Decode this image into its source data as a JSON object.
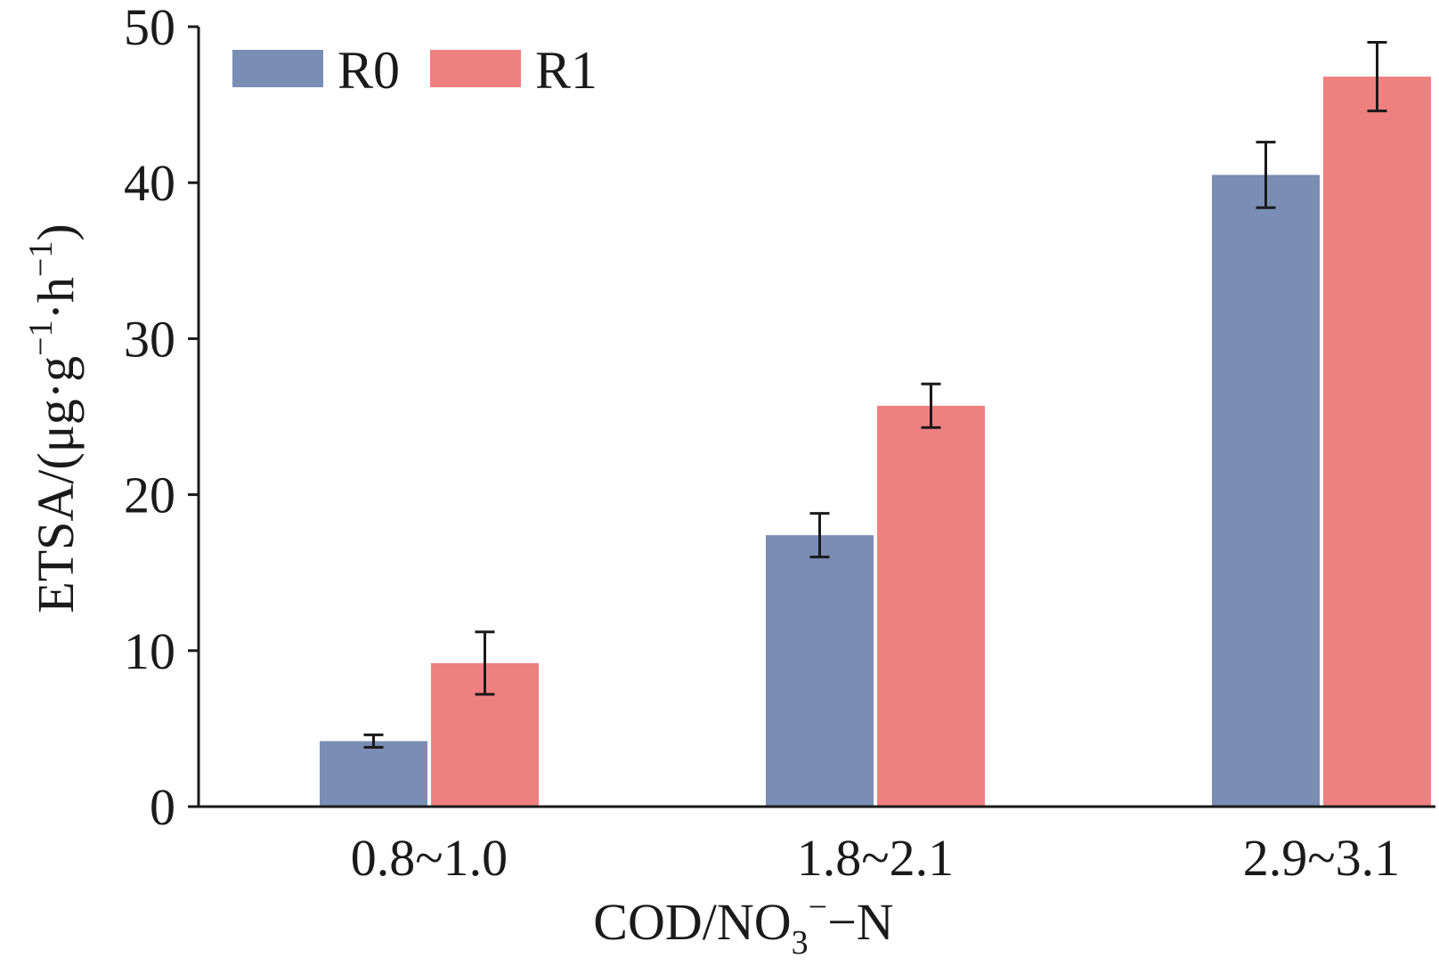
{
  "chart_data": {
    "type": "bar",
    "categories": [
      "0.8~1.0",
      "1.8~2.1",
      "2.9~3.1"
    ],
    "series": [
      {
        "name": "R0",
        "color": "#7a8db4",
        "values": [
          4.2,
          17.4,
          40.5
        ],
        "errors": [
          0.4,
          1.4,
          2.1
        ]
      },
      {
        "name": "R1",
        "color": "#ef8080",
        "values": [
          9.2,
          25.7,
          46.8
        ],
        "errors": [
          2.0,
          1.4,
          2.2
        ]
      }
    ],
    "ylim": [
      0,
      50
    ],
    "yticks": [
      0,
      10,
      20,
      30,
      40,
      50
    ],
    "ylabel": {
      "text": "ETSA/(μg·g",
      "sup1": "−1",
      "mid": "·h",
      "sup2": "−1",
      "end": ")"
    },
    "xlabel": {
      "text": "COD/NO",
      "sub": "3",
      "sup": "−",
      "end": "−N"
    },
    "legend_position": "top-left",
    "grid": false
  }
}
